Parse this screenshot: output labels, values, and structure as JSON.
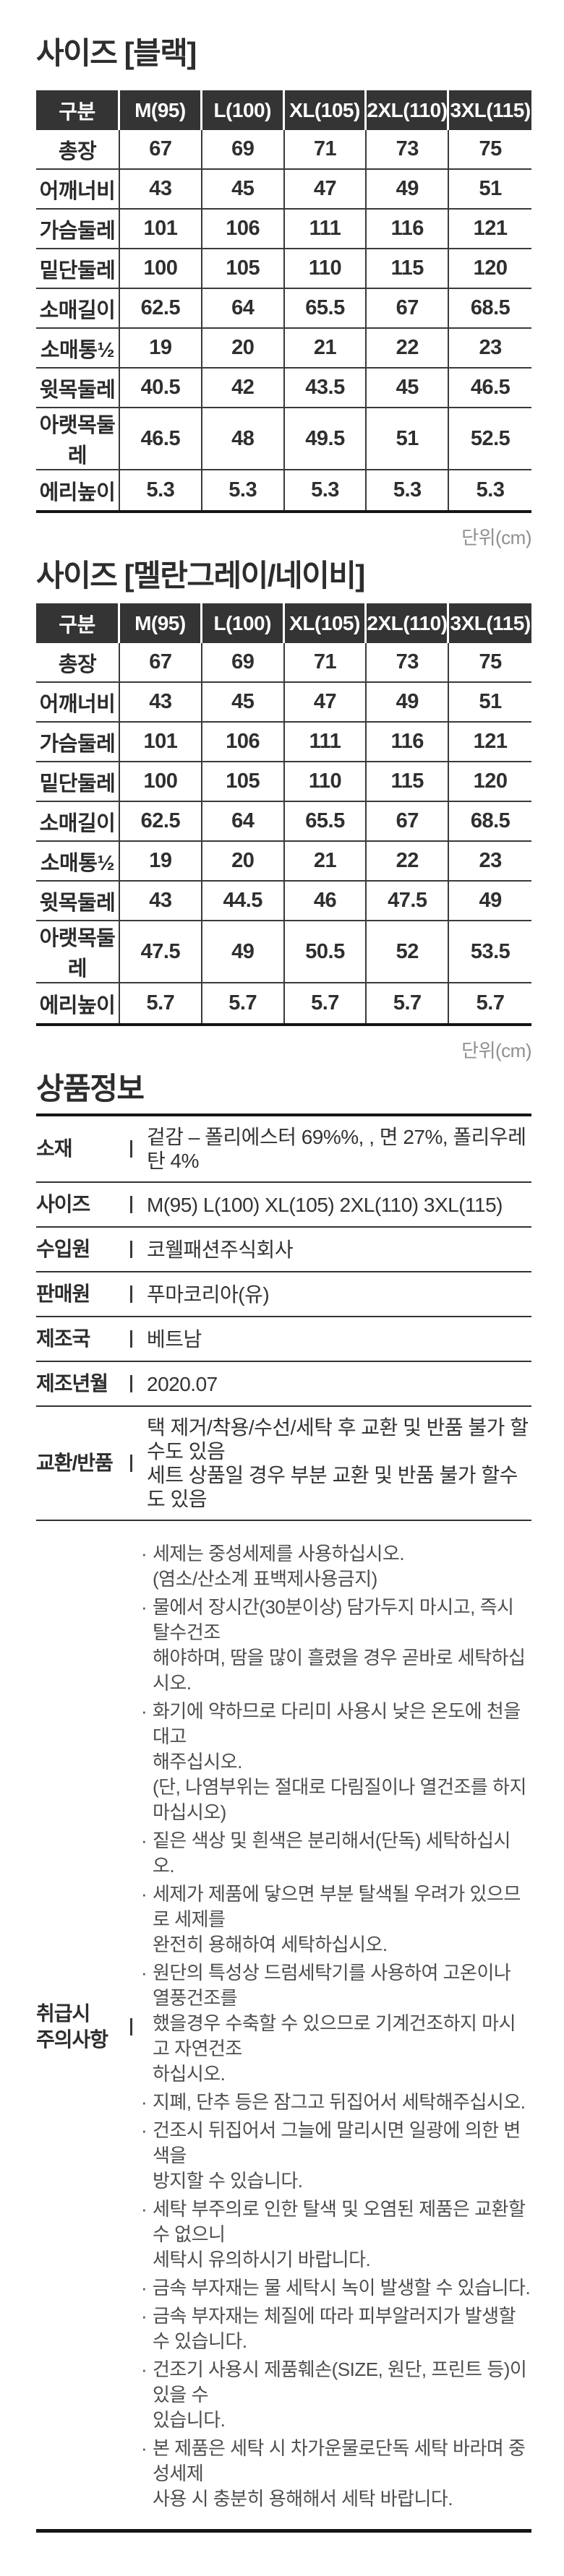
{
  "page": {
    "unit_label": "단위(cm)",
    "bullet": "·",
    "colors": {
      "header_bg": "#343434",
      "header_text": "#ffffff",
      "body_text": "#2f2f2f",
      "care_text": "#4d4d4d",
      "muted": "#8f8f8f",
      "thin_border": "#3a3a3a",
      "heavy_border": "#151515"
    }
  },
  "size_tables": [
    {
      "title": "사이즈 [블랙]",
      "columns": [
        "구분",
        "M(95)",
        "L(100)",
        "XL(105)",
        "2XL(110)",
        "3XL(115)"
      ],
      "rows": [
        {
          "label": "총장",
          "values": [
            "67",
            "69",
            "71",
            "73",
            "75"
          ]
        },
        {
          "label": "어깨너비",
          "values": [
            "43",
            "45",
            "47",
            "49",
            "51"
          ]
        },
        {
          "label": "가슴둘레",
          "values": [
            "101",
            "106",
            "111",
            "116",
            "121"
          ]
        },
        {
          "label": "밑단둘레",
          "values": [
            "100",
            "105",
            "110",
            "115",
            "120"
          ]
        },
        {
          "label": "소매길이",
          "values": [
            "62.5",
            "64",
            "65.5",
            "67",
            "68.5"
          ]
        },
        {
          "label": "소매통½",
          "values": [
            "19",
            "20",
            "21",
            "22",
            "23"
          ]
        },
        {
          "label": "윗목둘레",
          "values": [
            "40.5",
            "42",
            "43.5",
            "45",
            "46.5"
          ]
        },
        {
          "label": "아랫목둘레",
          "values": [
            "46.5",
            "48",
            "49.5",
            "51",
            "52.5"
          ]
        },
        {
          "label": "에리높이",
          "values": [
            "5.3",
            "5.3",
            "5.3",
            "5.3",
            "5.3"
          ]
        }
      ]
    },
    {
      "title": "사이즈 [멜란그레이/네이비]",
      "columns": [
        "구분",
        "M(95)",
        "L(100)",
        "XL(105)",
        "2XL(110)",
        "3XL(115)"
      ],
      "rows": [
        {
          "label": "총장",
          "values": [
            "67",
            "69",
            "71",
            "73",
            "75"
          ]
        },
        {
          "label": "어깨너비",
          "values": [
            "43",
            "45",
            "47",
            "49",
            "51"
          ]
        },
        {
          "label": "가슴둘레",
          "values": [
            "101",
            "106",
            "111",
            "116",
            "121"
          ]
        },
        {
          "label": "밑단둘레",
          "values": [
            "100",
            "105",
            "110",
            "115",
            "120"
          ]
        },
        {
          "label": "소매길이",
          "values": [
            "62.5",
            "64",
            "65.5",
            "67",
            "68.5"
          ]
        },
        {
          "label": "소매통½",
          "values": [
            "19",
            "20",
            "21",
            "22",
            "23"
          ]
        },
        {
          "label": "윗목둘레",
          "values": [
            "43",
            "44.5",
            "46",
            "47.5",
            "49"
          ]
        },
        {
          "label": "아랫목둘레",
          "values": [
            "47.5",
            "49",
            "50.5",
            "52",
            "53.5"
          ]
        },
        {
          "label": "에리높이",
          "values": [
            "5.7",
            "5.7",
            "5.7",
            "5.7",
            "5.7"
          ]
        }
      ]
    }
  ],
  "product_info": {
    "title": "상품정보",
    "rows": [
      {
        "label": "소재",
        "value": "겉감 – 폴리에스터 69%%, , 면 27%, 폴리우레탄 4%"
      },
      {
        "label": "사이즈",
        "value": "M(95) L(100) XL(105) 2XL(110) 3XL(115)"
      },
      {
        "label": "수입원",
        "value": "코웰패션주식회사"
      },
      {
        "label": "판매원",
        "value": "푸마코리아(유)"
      },
      {
        "label": "제조국",
        "value": "베트남"
      },
      {
        "label": "제조년월",
        "value": "2020.07"
      },
      {
        "label": "교환/반품",
        "value": "택 제거/착용/수선/세탁 후 교환 및 반품 불가 할수도 있음\n세트 상품일 경우 부분 교환 및 반품 불가 할수도 있음"
      }
    ],
    "care": {
      "label": "취급시\n주의사항",
      "items": [
        "세제는 중성세제를 사용하십시오.\n(염소/산소계 표백제사용금지)",
        "물에서 장시간(30분이상) 담가두지 마시고, 즉시 탈수건조\n해야하며, 땀을 많이 흘렸을 경우 곧바로 세탁하십시오.",
        "화기에 약하므로 다리미 사용시 낮은 온도에 천을 대고\n해주십시오.\n(단, 나염부위는 절대로 다림질이나 열건조를 하지 마십시오)",
        "짙은 색상 및 흰색은 분리해서(단독) 세탁하십시오.",
        "세제가 제품에 닿으면 부분 탈색될 우려가 있으므로 세제를\n완전히 용해하여 세탁하십시오.",
        "원단의 특성상 드럼세탁기를 사용하여 고온이나 열풍건조를\n했을경우 수축할 수 있으므로 기계건조하지 마시고 자연건조\n하십시오.",
        "지폐, 단추 등은 잠그고 뒤집어서 세탁해주십시오.",
        "건조시 뒤집어서 그늘에 말리시면 일광에 의한 변색을\n방지할 수 있습니다.",
        "세탁 부주의로 인한 탈색 및 오염된 제품은 교환할 수 없으니\n세탁시 유의하시기 바랍니다.",
        "금속 부자재는 물 세탁시 녹이 발생할 수 있습니다.",
        "금속 부자재는 체질에 따라 피부알러지가 발생할 수 있습니다.",
        "건조기 사용시 제품훼손(SIZE, 원단, 프린트 등)이 있을 수\n있습니다.",
        "본 제품은 세탁 시 차가운물로단독 세탁 바라며 중성세제\n사용 시 충분히 용해해서 세탁 바랍니다."
      ]
    }
  }
}
